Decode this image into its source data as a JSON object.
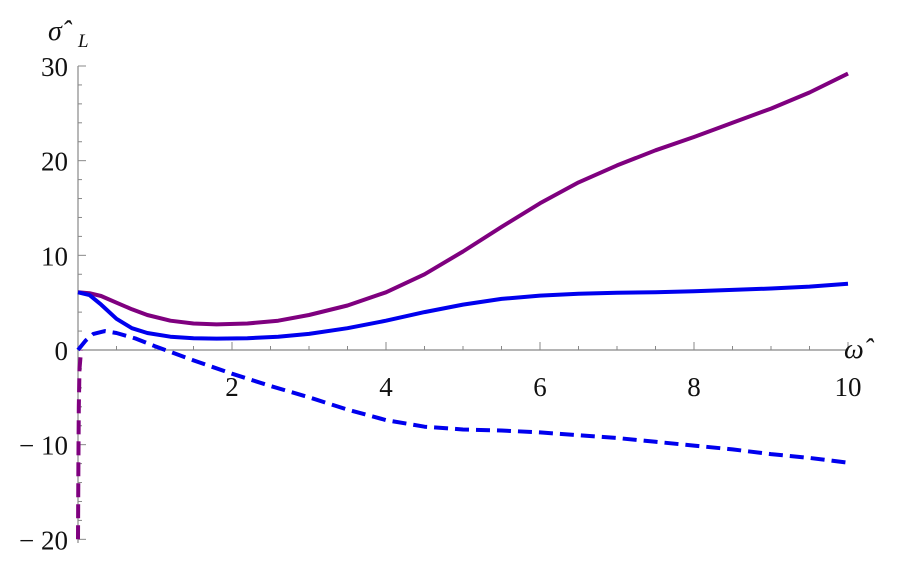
{
  "chart_data": {
    "type": "line",
    "xlabel": "ω̂",
    "ylabel": "σ̂",
    "ylabel_subscript": "L",
    "xlim": [
      0,
      10
    ],
    "ylim": [
      -20,
      30
    ],
    "x_ticks": [
      2,
      4,
      6,
      8,
      10
    ],
    "x_tick_labels": [
      "2",
      "4",
      "6",
      "8",
      "10"
    ],
    "y_ticks": [
      -20,
      -10,
      0,
      10,
      20,
      30
    ],
    "y_tick_labels": [
      "− 20",
      "− 10",
      "0",
      "10",
      "20",
      "30"
    ],
    "grid": false,
    "legend": "none",
    "series": [
      {
        "color": "#7f007f",
        "dash": "solid",
        "points": [
          [
            0,
            6.1
          ],
          [
            0.15,
            6.0
          ],
          [
            0.3,
            5.7
          ],
          [
            0.5,
            5.0
          ],
          [
            0.7,
            4.3
          ],
          [
            0.9,
            3.7
          ],
          [
            1.2,
            3.1
          ],
          [
            1.5,
            2.8
          ],
          [
            1.8,
            2.7
          ],
          [
            2.2,
            2.8
          ],
          [
            2.6,
            3.1
          ],
          [
            3.0,
            3.7
          ],
          [
            3.5,
            4.7
          ],
          [
            4.0,
            6.1
          ],
          [
            4.5,
            8.0
          ],
          [
            5.0,
            10.4
          ],
          [
            5.5,
            13.0
          ],
          [
            6.0,
            15.5
          ],
          [
            6.5,
            17.7
          ],
          [
            7.0,
            19.5
          ],
          [
            7.5,
            21.1
          ],
          [
            8.0,
            22.5
          ],
          [
            8.5,
            24.0
          ],
          [
            9.0,
            25.5
          ],
          [
            9.5,
            27.2
          ],
          [
            10.0,
            29.2
          ]
        ]
      },
      {
        "color": "#0000ee",
        "dash": "solid",
        "points": [
          [
            0,
            6.1
          ],
          [
            0.15,
            5.8
          ],
          [
            0.3,
            4.8
          ],
          [
            0.5,
            3.3
          ],
          [
            0.7,
            2.3
          ],
          [
            0.9,
            1.8
          ],
          [
            1.2,
            1.4
          ],
          [
            1.5,
            1.25
          ],
          [
            1.8,
            1.2
          ],
          [
            2.2,
            1.25
          ],
          [
            2.6,
            1.4
          ],
          [
            3.0,
            1.7
          ],
          [
            3.5,
            2.3
          ],
          [
            4.0,
            3.1
          ],
          [
            4.5,
            4.0
          ],
          [
            5.0,
            4.8
          ],
          [
            5.5,
            5.4
          ],
          [
            6.0,
            5.75
          ],
          [
            6.5,
            5.95
          ],
          [
            7.0,
            6.05
          ],
          [
            7.5,
            6.1
          ],
          [
            8.0,
            6.2
          ],
          [
            8.5,
            6.35
          ],
          [
            9.0,
            6.5
          ],
          [
            9.5,
            6.7
          ],
          [
            10.0,
            7.0
          ]
        ]
      },
      {
        "color": "#0000ee",
        "dash": "dashed",
        "points": [
          [
            0,
            0
          ],
          [
            0.1,
            1.0
          ],
          [
            0.2,
            1.7
          ],
          [
            0.35,
            2.0
          ],
          [
            0.5,
            1.8
          ],
          [
            0.75,
            1.2
          ],
          [
            1.0,
            0.4
          ],
          [
            1.5,
            -1.1
          ],
          [
            2.0,
            -2.5
          ],
          [
            2.5,
            -3.8
          ],
          [
            3.0,
            -5.0
          ],
          [
            3.5,
            -6.3
          ],
          [
            4.0,
            -7.4
          ],
          [
            4.5,
            -8.1
          ],
          [
            5.0,
            -8.4
          ],
          [
            5.5,
            -8.5
          ],
          [
            6.0,
            -8.7
          ],
          [
            6.5,
            -9.0
          ],
          [
            7.0,
            -9.3
          ],
          [
            7.5,
            -9.7
          ],
          [
            8.0,
            -10.1
          ],
          [
            8.5,
            -10.5
          ],
          [
            9.0,
            -11.0
          ],
          [
            9.5,
            -11.4
          ],
          [
            10.0,
            -11.9
          ]
        ]
      },
      {
        "color": "#7f007f",
        "dash": "dashed",
        "points": [
          [
            0,
            -20
          ],
          [
            0.005,
            -12
          ],
          [
            0.01,
            -6
          ],
          [
            0.02,
            -2
          ],
          [
            0.04,
            0
          ]
        ]
      }
    ]
  }
}
